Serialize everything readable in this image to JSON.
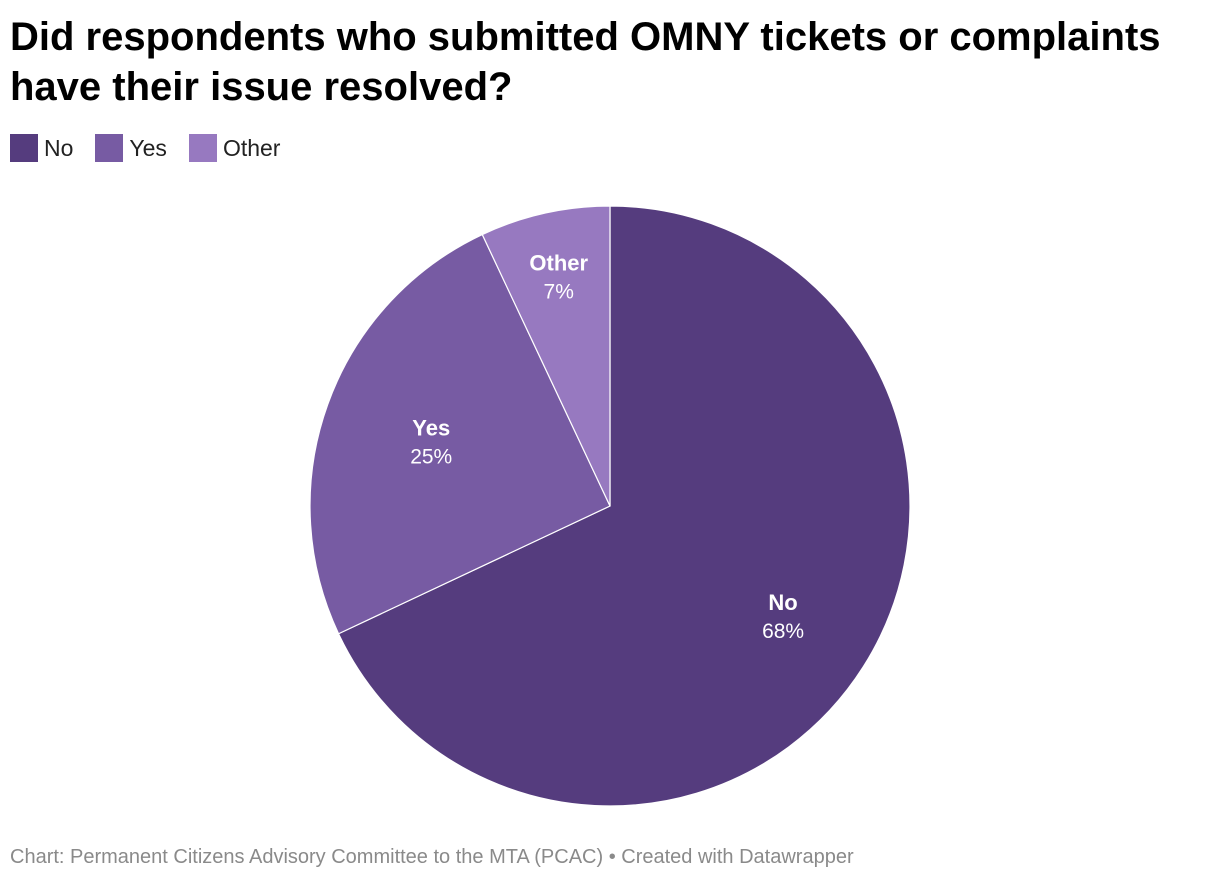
{
  "chart_data": {
    "type": "pie",
    "title": "Did respondents who submitted OMNY tickets or complaints have their issue resolved?",
    "legend_placement": "top-left",
    "slices": [
      {
        "label": "No",
        "value": 68,
        "display": "68%",
        "color": "#553c7e"
      },
      {
        "label": "Yes",
        "value": 25,
        "display": "25%",
        "color": "#775ba3"
      },
      {
        "label": "Other",
        "value": 7,
        "display": "7%",
        "color": "#9779c0"
      }
    ]
  },
  "footer": {
    "text": "Chart: Permanent Citizens Advisory Committee to the MTA (PCAC) • Created with Datawrapper"
  }
}
